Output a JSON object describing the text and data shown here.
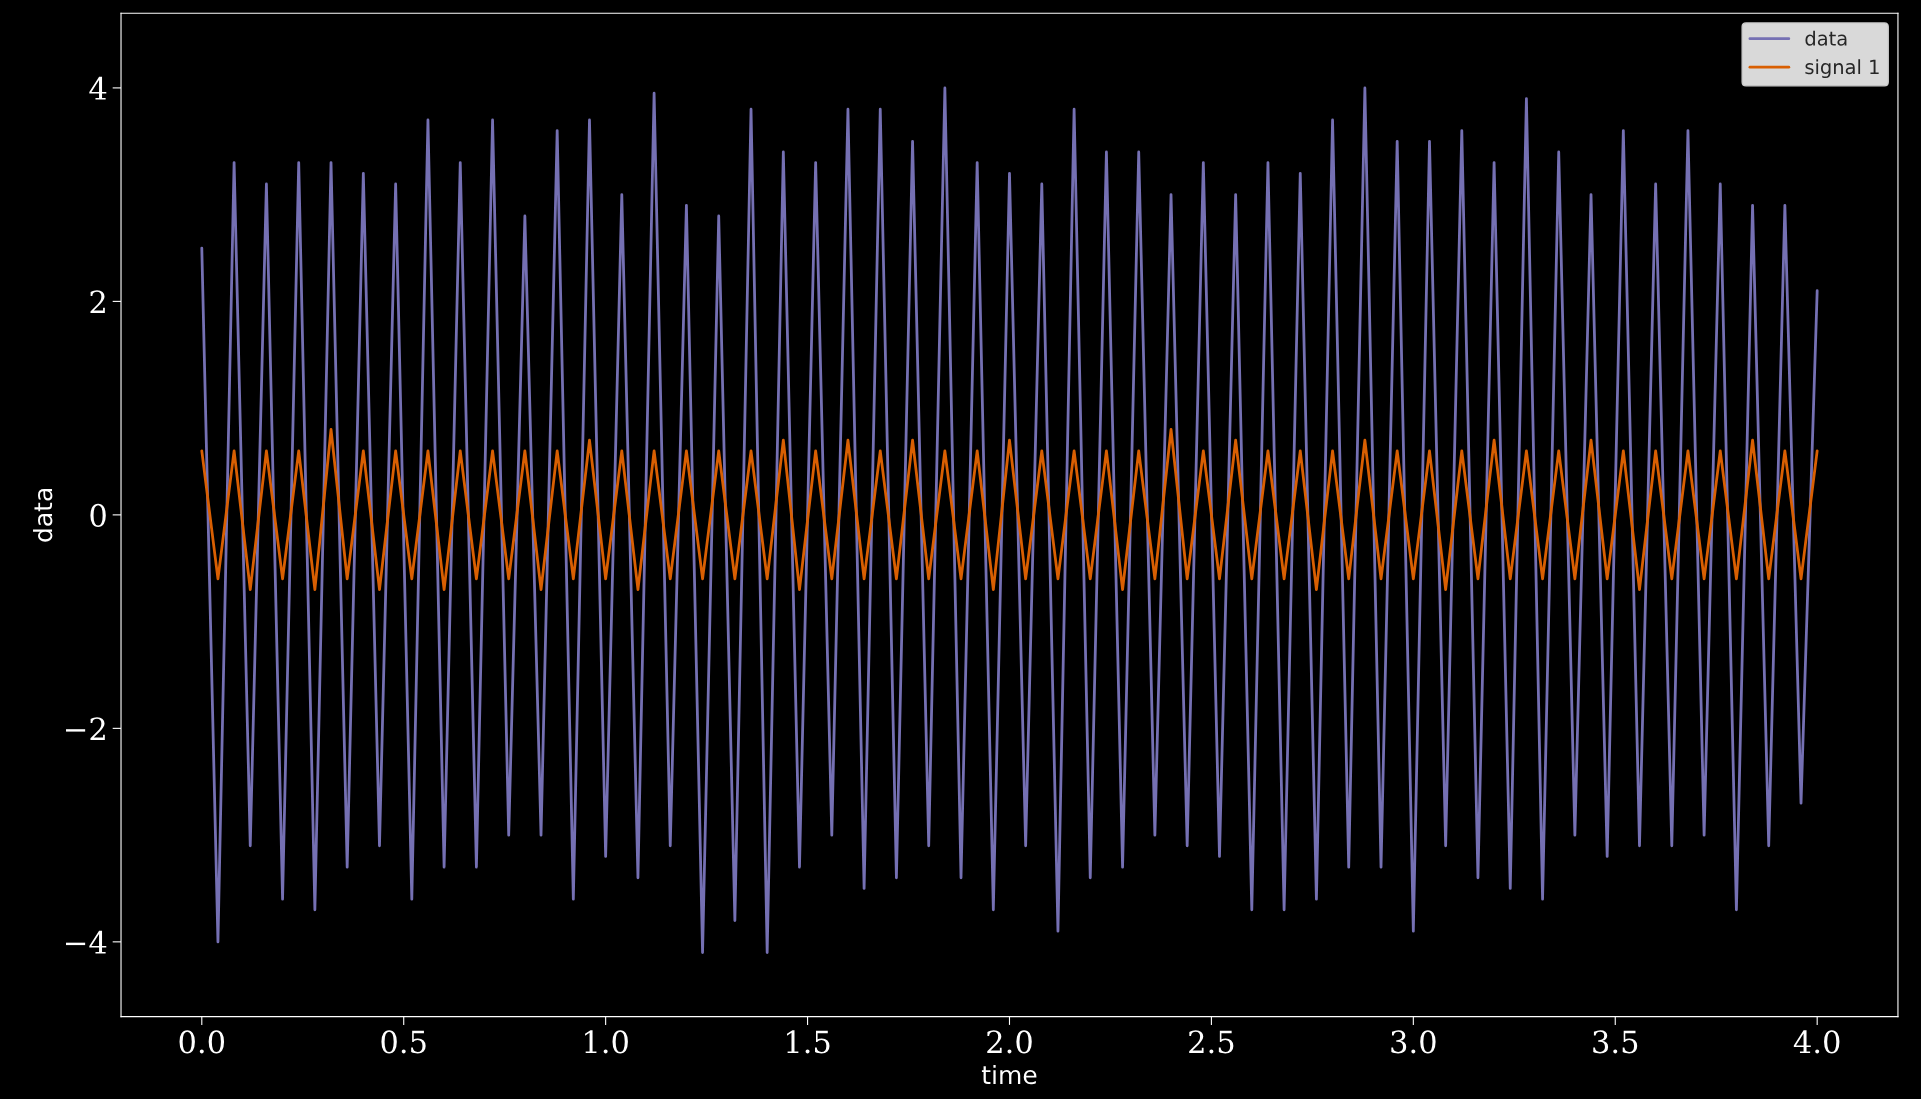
{
  "chart_data": {
    "type": "line",
    "xlabel": "time",
    "ylabel": "data",
    "x": [
      0,
      0.04,
      0.08,
      0.12,
      0.16,
      0.2,
      0.24,
      0.28,
      0.32,
      0.36,
      0.4,
      0.44,
      0.48,
      0.52,
      0.56,
      0.6,
      0.64,
      0.68,
      0.72,
      0.76,
      0.8,
      0.84,
      0.88,
      0.92,
      0.96,
      1.0,
      1.04,
      1.08,
      1.12,
      1.16,
      1.2,
      1.24,
      1.28,
      1.32,
      1.36,
      1.4,
      1.44,
      1.48,
      1.52,
      1.56,
      1.6,
      1.64,
      1.68,
      1.72,
      1.76,
      1.8,
      1.84,
      1.88,
      1.92,
      1.96,
      2.0,
      2.04,
      2.08,
      2.12,
      2.16,
      2.2,
      2.24,
      2.28,
      2.32,
      2.36,
      2.4,
      2.44,
      2.48,
      2.52,
      2.56,
      2.6,
      2.64,
      2.68,
      2.72,
      2.76,
      2.8,
      2.84,
      2.88,
      2.92,
      2.96,
      3.0,
      3.04,
      3.08,
      3.12,
      3.16,
      3.2,
      3.24,
      3.28,
      3.32,
      3.36,
      3.4,
      3.44,
      3.48,
      3.52,
      3.56,
      3.6,
      3.64,
      3.68,
      3.72,
      3.76,
      3.8,
      3.84,
      3.88,
      3.92,
      3.96,
      4.0
    ],
    "series": [
      {
        "name": "data",
        "color": "#7570b3",
        "values": [
          2.5,
          -4.0,
          3.3,
          -3.1,
          3.1,
          -3.6,
          3.3,
          -3.7,
          3.3,
          -3.3,
          3.2,
          -3.1,
          3.1,
          -3.6,
          3.7,
          -3.3,
          3.3,
          -3.3,
          3.7,
          -3.0,
          2.8,
          -3.0,
          3.6,
          -3.6,
          3.7,
          -3.2,
          3.0,
          -3.4,
          3.95,
          -3.1,
          2.9,
          -4.1,
          2.8,
          -3.8,
          3.8,
          -4.1,
          3.4,
          -3.3,
          3.3,
          -3.0,
          3.8,
          -3.5,
          3.8,
          -3.4,
          3.5,
          -3.1,
          4.0,
          -3.4,
          3.3,
          -3.7,
          3.2,
          -3.1,
          3.1,
          -3.9,
          3.8,
          -3.4,
          3.4,
          -3.3,
          3.4,
          -3.0,
          3.0,
          -3.1,
          3.3,
          -3.2,
          3.0,
          -3.7,
          3.3,
          -3.7,
          3.2,
          -3.6,
          3.7,
          -3.3,
          4.0,
          -3.3,
          3.5,
          -3.9,
          3.5,
          -3.1,
          3.6,
          -3.4,
          3.3,
          -3.5,
          3.9,
          -3.6,
          3.4,
          -3.0,
          3.0,
          -3.2,
          3.6,
          -3.1,
          3.1,
          -3.1,
          3.6,
          -3.0,
          3.1,
          -3.7,
          2.9,
          -3.1,
          2.9,
          -2.7,
          2.1
        ]
      },
      {
        "name": "signal 1",
        "color": "#d95f02",
        "values": [
          0.6,
          -0.6,
          0.6,
          -0.7,
          0.6,
          -0.6,
          0.6,
          -0.7,
          0.8,
          -0.6,
          0.6,
          -0.7,
          0.6,
          -0.6,
          0.6,
          -0.7,
          0.6,
          -0.6,
          0.6,
          -0.6,
          0.6,
          -0.7,
          0.6,
          -0.6,
          0.7,
          -0.6,
          0.6,
          -0.7,
          0.6,
          -0.6,
          0.6,
          -0.6,
          0.6,
          -0.6,
          0.6,
          -0.6,
          0.7,
          -0.7,
          0.6,
          -0.6,
          0.7,
          -0.6,
          0.6,
          -0.6,
          0.7,
          -0.6,
          0.6,
          -0.6,
          0.6,
          -0.7,
          0.7,
          -0.6,
          0.6,
          -0.6,
          0.6,
          -0.6,
          0.6,
          -0.7,
          0.6,
          -0.6,
          0.8,
          -0.6,
          0.6,
          -0.6,
          0.7,
          -0.6,
          0.6,
          -0.6,
          0.6,
          -0.7,
          0.6,
          -0.6,
          0.7,
          -0.6,
          0.6,
          -0.6,
          0.6,
          -0.7,
          0.6,
          -0.6,
          0.7,
          -0.6,
          0.6,
          -0.6,
          0.6,
          -0.6,
          0.7,
          -0.6,
          0.6,
          -0.7,
          0.6,
          -0.6,
          0.6,
          -0.6,
          0.6,
          -0.6,
          0.7,
          -0.6,
          0.6,
          -0.6,
          0.6
        ]
      }
    ],
    "xlim": [
      -0.2,
      4.2
    ],
    "ylim": [
      -4.7,
      4.7
    ],
    "xticks": [
      {
        "value": 0,
        "label": "0.0"
      },
      {
        "value": 0.5,
        "label": "0.5"
      },
      {
        "value": 1,
        "label": "1.0"
      },
      {
        "value": 1.5,
        "label": "1.5"
      },
      {
        "value": 2,
        "label": "2.0"
      },
      {
        "value": 2.5,
        "label": "2.5"
      },
      {
        "value": 3,
        "label": "3.0"
      },
      {
        "value": 3.5,
        "label": "3.5"
      },
      {
        "value": 4,
        "label": "4.0"
      }
    ],
    "yticks": [
      {
        "value": -4,
        "label": "−4"
      },
      {
        "value": -2,
        "label": "−2"
      },
      0,
      2,
      4
    ],
    "grid": false,
    "legend": "top right",
    "marker": "none",
    "line_style": "solid"
  }
}
